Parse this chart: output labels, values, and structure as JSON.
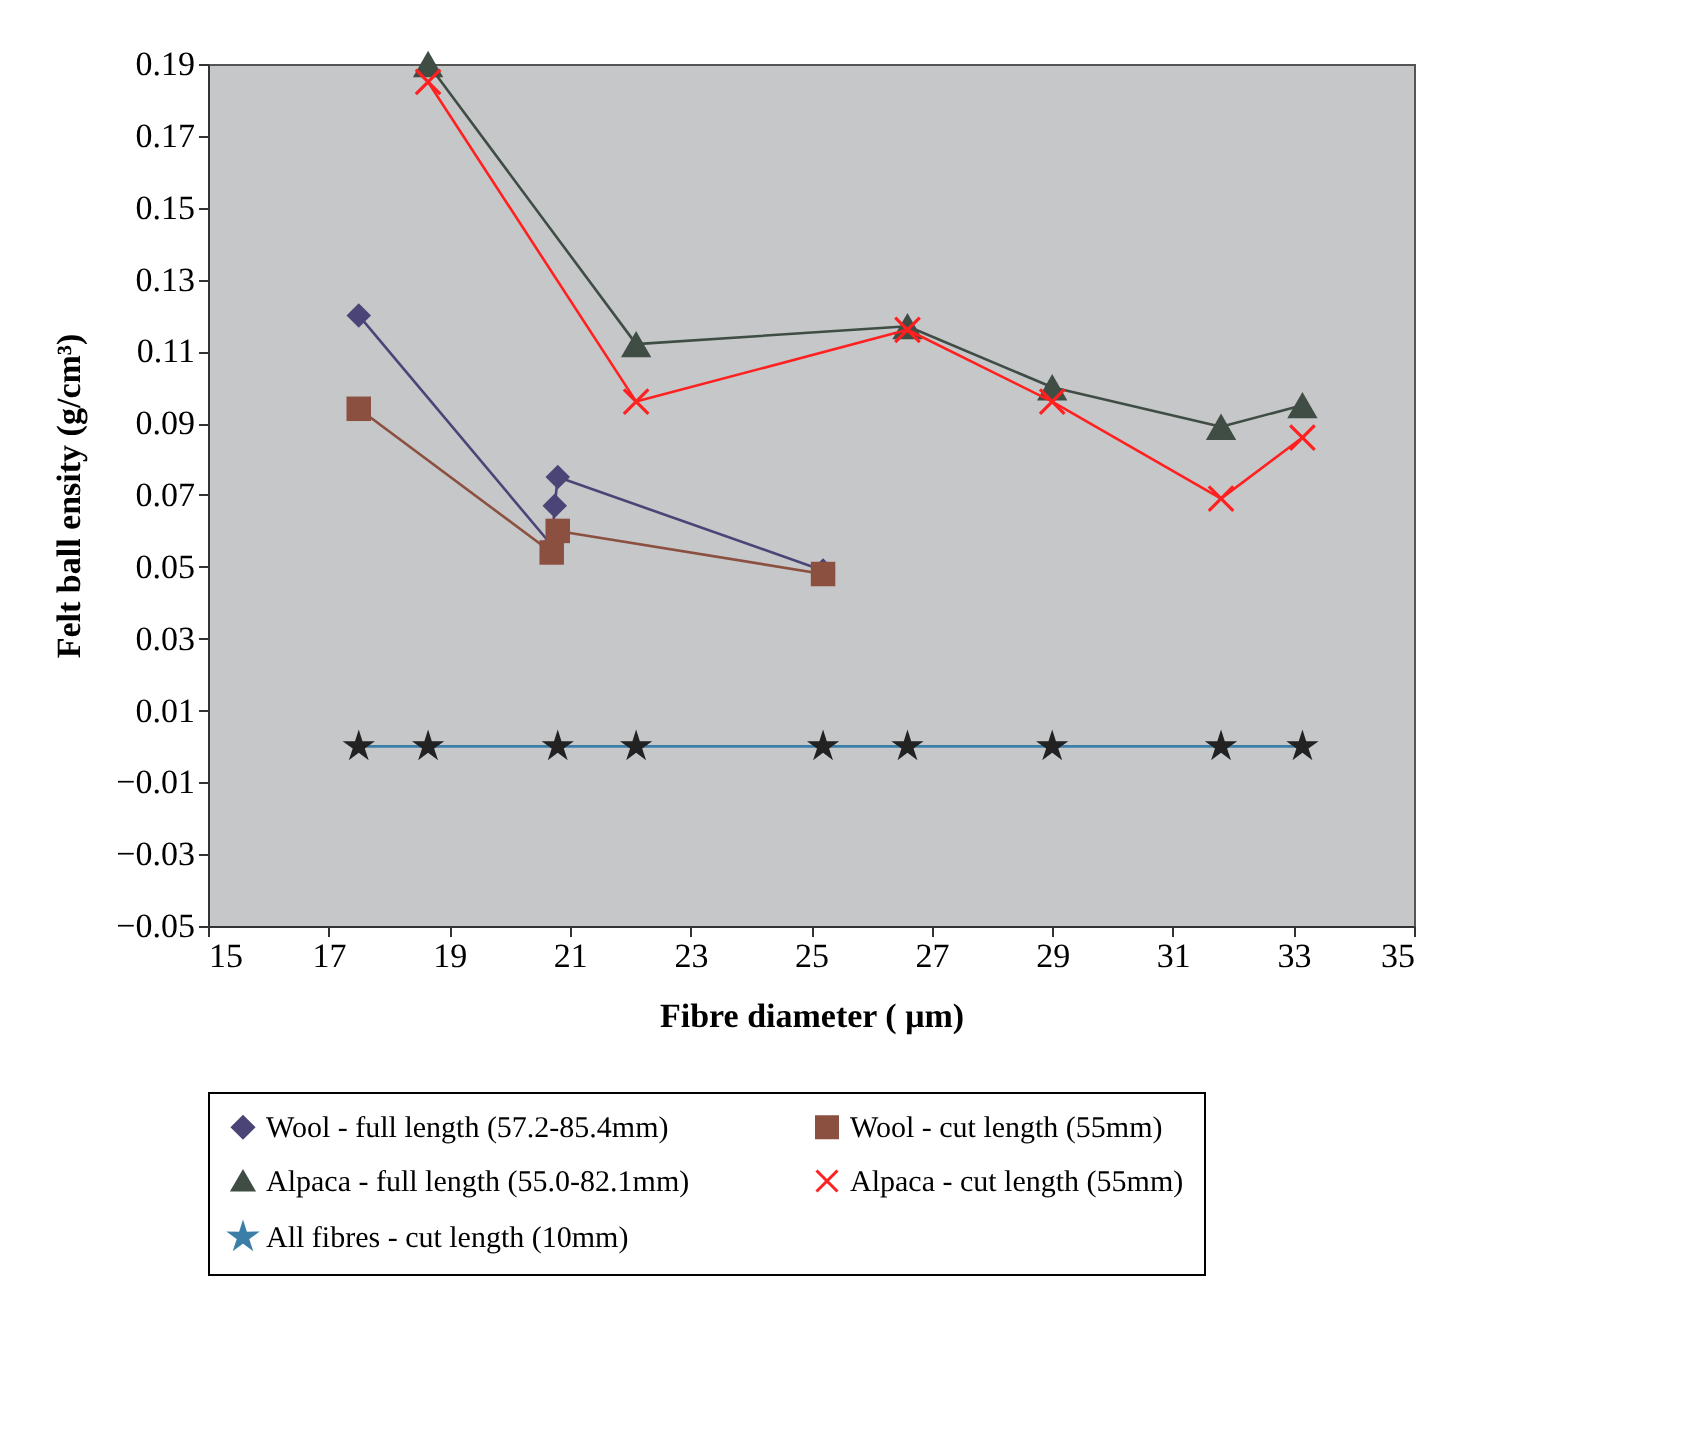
{
  "chart_data": {
    "type": "line",
    "xlabel": "Fibre diameter ( μm)",
    "ylabel": "Felt ball ensity (g/cm³)",
    "xlim": [
      15,
      35
    ],
    "xticks": [
      15,
      17,
      19,
      21,
      23,
      25,
      27,
      29,
      31,
      33,
      35
    ],
    "ylim": [
      -0.05,
      0.19
    ],
    "yticks": [
      -0.05,
      -0.03,
      -0.01,
      0.01,
      0.03,
      0.05,
      0.07,
      0.09,
      0.11,
      0.13,
      0.15,
      0.17,
      0.19
    ],
    "grid": false,
    "legend": "bottom",
    "line_style": "solid",
    "series": [
      {
        "name": "Wool - full length (57.2-85.4mm)",
        "color": "#4b4577",
        "marker": "diamond",
        "x": [
          17.5,
          20.7,
          20.75,
          20.8,
          25.2
        ],
        "values": [
          0.12,
          0.056,
          0.067,
          0.075,
          0.049
        ]
      },
      {
        "name": "Wool - cut length (55mm)",
        "color": "#8b5040",
        "marker": "square",
        "x": [
          17.5,
          20.7,
          20.8,
          25.2
        ],
        "values": [
          0.094,
          0.054,
          0.06,
          0.048
        ]
      },
      {
        "name": "Alpaca - full length (55.0-82.1mm)",
        "color": "#3f4d45",
        "marker": "triangle",
        "x": [
          18.65,
          22.1,
          26.6,
          29.0,
          31.8,
          33.15
        ],
        "values": [
          0.19,
          0.112,
          0.117,
          0.1,
          0.089,
          0.095
        ]
      },
      {
        "name": "Alpaca - cut length (55mm)",
        "color": "#ff2020",
        "marker": "cross",
        "x": [
          18.65,
          22.1,
          26.6,
          29.0,
          31.8,
          33.15
        ],
        "values": [
          0.185,
          0.096,
          0.116,
          0.096,
          0.069,
          0.086
        ]
      },
      {
        "name": "All fibres - cut length (10mm)",
        "color": "#3b7ea8",
        "marker": "star",
        "x": [
          17.5,
          18.65,
          20.8,
          22.1,
          25.2,
          26.6,
          29.0,
          31.8,
          33.15
        ],
        "values": [
          0,
          0,
          0,
          0,
          0,
          0,
          0,
          0,
          0
        ]
      }
    ]
  }
}
